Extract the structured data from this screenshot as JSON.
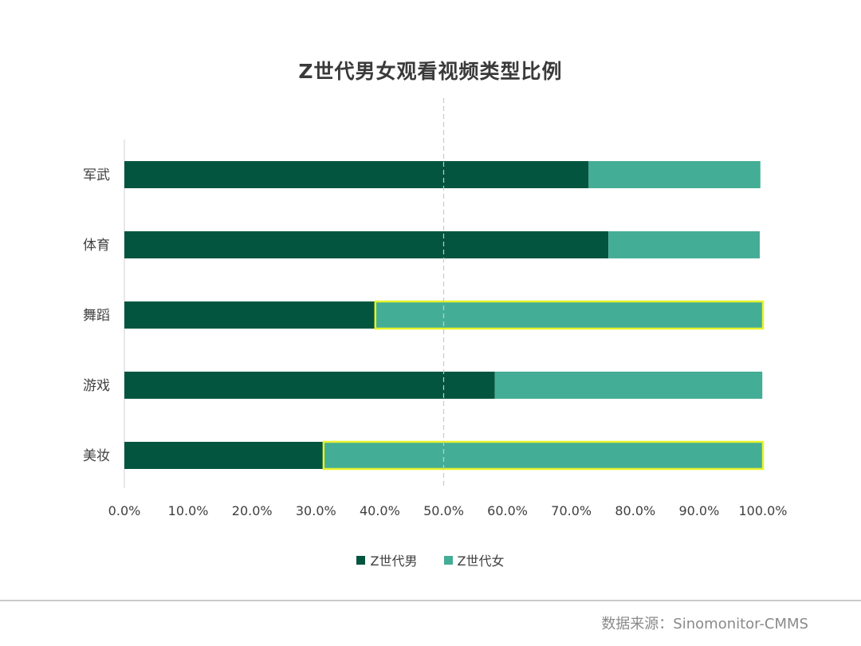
{
  "chart_data": {
    "type": "bar",
    "orientation": "horizontal",
    "stacked": true,
    "title": "Z世代男女观看视频类型比例",
    "categories": [
      "军武",
      "体育",
      "舞蹈",
      "游戏",
      "美妆"
    ],
    "series": [
      {
        "name": "Z世代男",
        "color": "#03553F",
        "values": [
          0.727,
          0.758,
          0.393,
          0.58,
          0.312
        ]
      },
      {
        "name": "Z世代女",
        "color": "#44AD96",
        "values": [
          0.269,
          0.237,
          0.607,
          0.419,
          0.688
        ]
      }
    ],
    "highlighted": [
      {
        "category": "舞蹈",
        "series": "Z世代女"
      },
      {
        "category": "美妆",
        "series": "Z世代女"
      }
    ],
    "highlight_color": "#E6F22A",
    "reference_line": {
      "value": 0.5,
      "style": "dashed"
    },
    "xlim": [
      0,
      1
    ],
    "x_ticks": [
      "0.0%",
      "10.0%",
      "20.0%",
      "30.0%",
      "40.0%",
      "50.0%",
      "60.0%",
      "70.0%",
      "80.0%",
      "90.0%",
      "100.0%"
    ],
    "legend_position": "bottom",
    "grid": false
  },
  "footer": {
    "source": "数据来源：Sinomonitor-CMMS"
  }
}
